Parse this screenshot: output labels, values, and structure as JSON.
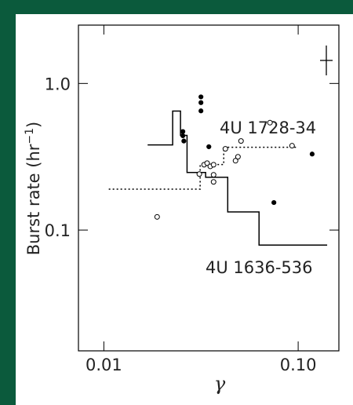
{
  "chart_data": {
    "type": "line",
    "x_label": "γ",
    "y_label": [
      "Burst rate (hr",
      "−1",
      ")"
    ],
    "xscale": "log",
    "yscale": "log",
    "xlim": [
      0.0074,
      0.162
    ],
    "ylim": [
      0.015,
      2.5
    ],
    "xticks": [
      0.01,
      {
        "value": 0.1,
        "label": "0.10"
      }
    ],
    "yticks": [
      0.1,
      {
        "value": 1,
        "label": "1.0"
      }
    ],
    "color": "#000000",
    "frame_color": "#0b5a3c",
    "series": [
      {
        "name": "4U 1636-536",
        "type": "line",
        "style": "solid",
        "x": [
          0.0168,
          0.0226,
          0.0226,
          0.0248,
          0.0248,
          0.0268,
          0.0268,
          0.0334,
          0.0334,
          0.0434,
          0.0434,
          0.0629,
          0.0629,
          0.141
        ],
        "values": [
          0.381,
          0.381,
          0.648,
          0.648,
          0.442,
          0.442,
          0.247,
          0.247,
          0.229,
          0.229,
          0.133,
          0.133,
          0.079,
          0.079
        ]
      },
      {
        "name": "4U 1728-34",
        "type": "line",
        "style": "dotted",
        "x": [
          0.0106,
          0.0313,
          0.0313,
          0.0414,
          0.0414,
          0.0983
        ],
        "values": [
          0.19,
          0.19,
          0.28,
          0.28,
          0.367,
          0.367
        ]
      },
      {
        "type": "scatter",
        "marker": "filled",
        "x": [
          0.0255,
          0.0255,
          0.0258,
          0.0316,
          0.0316,
          0.0316,
          0.0347,
          0.118,
          0.075
        ],
        "values": [
          0.47,
          0.44,
          0.405,
          0.81,
          0.74,
          0.65,
          0.37,
          0.33,
          0.154
        ]
      },
      {
        "type": "scatter",
        "marker": "open",
        "x": [
          0.0188,
          0.031,
          0.0328,
          0.034,
          0.0353,
          0.0367,
          0.0367,
          0.0367,
          0.0422,
          0.0476,
          0.049,
          0.0508,
          0.093,
          0.0716
        ],
        "values": [
          0.123,
          0.241,
          0.279,
          0.286,
          0.272,
          0.279,
          0.238,
          0.213,
          0.358,
          0.297,
          0.316,
          0.405,
          0.376,
          0.54
        ]
      }
    ]
  }
}
